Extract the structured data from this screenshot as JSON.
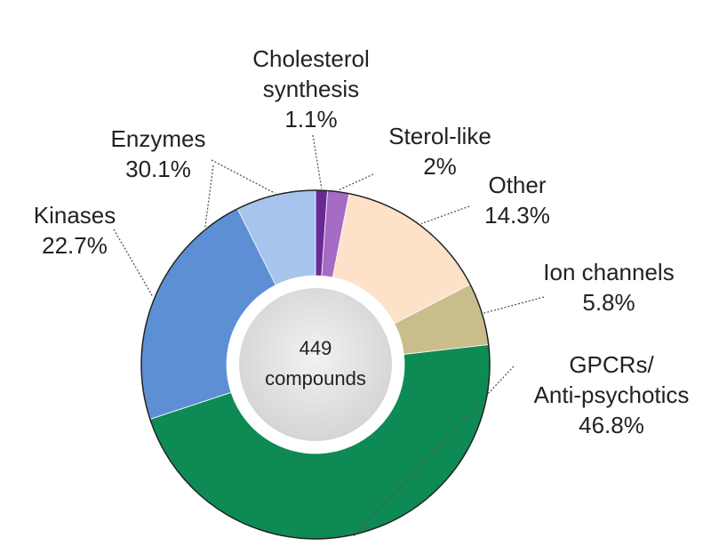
{
  "chart_data": {
    "type": "donut",
    "center_label": [
      "449",
      "compounds"
    ],
    "slices": [
      {
        "label": [
          "Cholesterol",
          "synthesis"
        ],
        "value": 1.1,
        "value_label": "1.1%",
        "color": "#6a2a96"
      },
      {
        "label": [
          "Sterol-like"
        ],
        "value": 2,
        "value_label": "2%",
        "color": "#a66bc4"
      },
      {
        "label": [
          "Other"
        ],
        "value": 14.3,
        "value_label": "14.3%",
        "color": "#fde1c8"
      },
      {
        "label": [
          "Ion channels"
        ],
        "value": 5.8,
        "value_label": "5.8%",
        "color": "#c9bd8b"
      },
      {
        "label": [
          "GPCRs/",
          "Anti-psychotics"
        ],
        "value": 46.8,
        "value_label": "46.8%",
        "color": "#0e8a55"
      },
      {
        "label": [
          "Enzymes"
        ],
        "value": 30.1,
        "value_label": "30.1%",
        "color": "#a7c5ec",
        "sub": {
          "label": [
            "Kinases"
          ],
          "value": 22.7,
          "value_label": "22.7%",
          "color": "#5d8fd5"
        }
      }
    ]
  }
}
